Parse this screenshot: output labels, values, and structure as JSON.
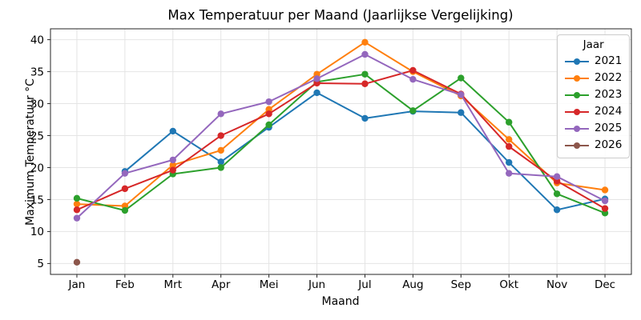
{
  "chart_data": {
    "type": "line",
    "title": "Max Temperatuur per Maand (Jaarlijkse Vergelijking)",
    "xlabel": "Maand",
    "ylabel": "Maximum Temperatuur °C",
    "categories": [
      "Jan",
      "Feb",
      "Mrt",
      "Apr",
      "Mei",
      "Jun",
      "Jul",
      "Aug",
      "Sep",
      "Okt",
      "Nov",
      "Dec"
    ],
    "series": [
      {
        "name": "2021",
        "color": "#1f77b4",
        "values": [
          null,
          19.4,
          25.7,
          20.9,
          26.3,
          31.7,
          27.7,
          28.8,
          28.6,
          20.8,
          13.4,
          15.1
        ]
      },
      {
        "name": "2022",
        "color": "#ff7f0e",
        "values": [
          14.3,
          14.0,
          20.4,
          22.7,
          29.1,
          34.6,
          39.6,
          35.0,
          31.2,
          24.4,
          17.6,
          16.5
        ]
      },
      {
        "name": "2023",
        "color": "#2ca02c",
        "values": [
          15.2,
          13.3,
          19.0,
          20.0,
          26.7,
          33.4,
          34.6,
          28.9,
          34.0,
          27.1,
          15.9,
          12.9
        ]
      },
      {
        "name": "2024",
        "color": "#d62728",
        "values": [
          13.4,
          16.7,
          19.6,
          25.0,
          28.4,
          33.2,
          33.1,
          35.2,
          31.5,
          23.3,
          17.9,
          13.6
        ]
      },
      {
        "name": "2025",
        "color": "#9467bd",
        "values": [
          12.1,
          19.1,
          21.2,
          28.4,
          30.3,
          33.9,
          37.7,
          33.8,
          31.4,
          19.1,
          18.6,
          14.8
        ]
      },
      {
        "name": "2026",
        "color": "#8c564b",
        "values": [
          5.2,
          null,
          null,
          null,
          null,
          null,
          null,
          null,
          null,
          null,
          null,
          null
        ]
      }
    ],
    "yticks": [
      5,
      10,
      15,
      20,
      25,
      30,
      35,
      40
    ],
    "ylim": [
      3.3,
      41.7
    ],
    "grid": true,
    "legend": {
      "title": "Jaar",
      "position": "upper right"
    },
    "marker": "circle"
  },
  "styles": {
    "grid_color": "#e4e4e4",
    "spine_color": "#262626",
    "tick_color": "#262626",
    "text_color": "#000000",
    "legend_border": "#cccccc"
  }
}
